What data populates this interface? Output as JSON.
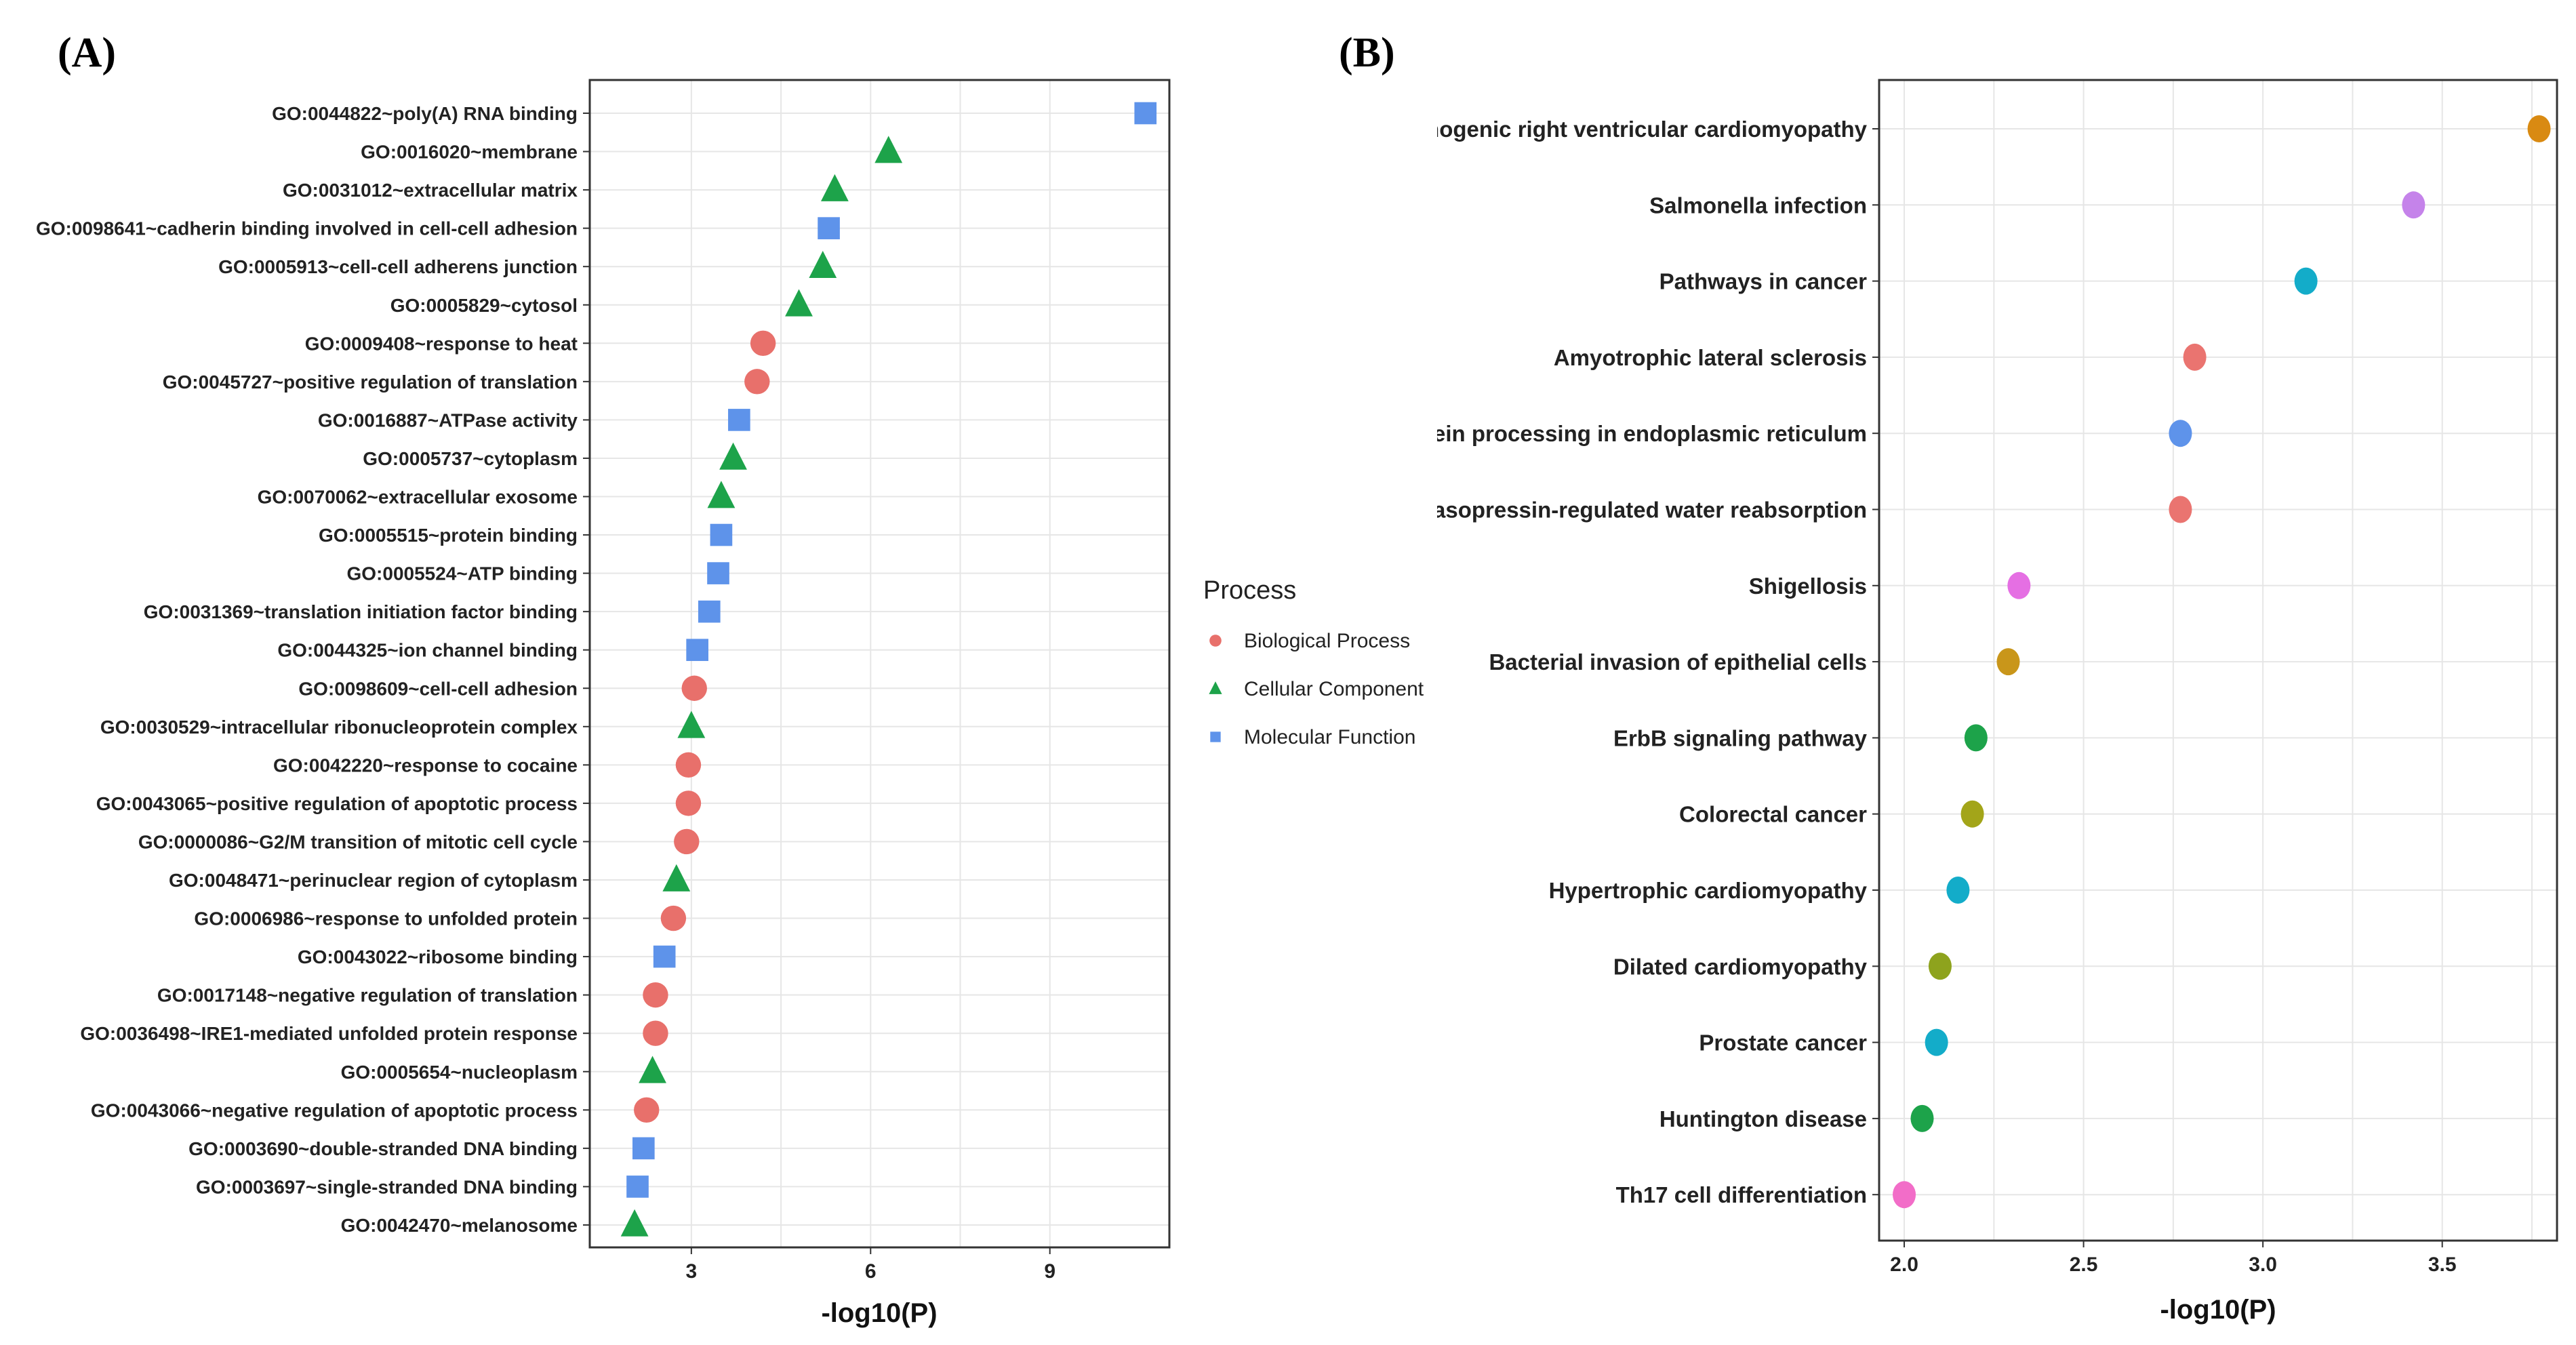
{
  "panels": {
    "a_label": "(A)",
    "b_label": "(B)"
  },
  "legend": {
    "title": "Process",
    "items": [
      {
        "name": "Biological Process",
        "color": "#E8706B",
        "shape": "circle"
      },
      {
        "name": "Cellular Component",
        "color": "#1DA34A",
        "shape": "triangle"
      },
      {
        "name": "Molecular Function",
        "color": "#5E93EA",
        "shape": "square"
      }
    ]
  },
  "chart_data": [
    {
      "type": "scatter",
      "panel": "A",
      "xlabel": "-log10(P)",
      "ylabel": "",
      "xlim": [
        1.3,
        11.0
      ],
      "xticks": [
        3,
        6,
        9
      ],
      "grid": true,
      "categories": [
        "GO:0044822~poly(A) RNA binding",
        "GO:0016020~membrane",
        "GO:0031012~extracellular matrix",
        "GO:0098641~cadherin binding involved in cell-cell adhesion",
        "GO:0005913~cell-cell adherens junction",
        "GO:0005829~cytosol",
        "GO:0009408~response to heat",
        "GO:0045727~positive regulation of translation",
        "GO:0016887~ATPase activity",
        "GO:0005737~cytoplasm",
        "GO:0070062~extracellular exosome",
        "GO:0005515~protein binding",
        "GO:0005524~ATP binding",
        "GO:0031369~translation initiation factor binding",
        "GO:0044325~ion channel binding",
        "GO:0098609~cell-cell adhesion",
        "GO:0030529~intracellular ribonucleoprotein complex",
        "GO:0042220~response to cocaine",
        "GO:0043065~positive regulation of apoptotic process",
        "GO:0000086~G2/M transition of mitotic cell cycle",
        "GO:0048471~perinuclear region of cytoplasm",
        "GO:0006986~response to unfolded protein",
        "GO:0043022~ribosome binding",
        "GO:0017148~negative regulation of translation",
        "GO:0036498~IRE1-mediated unfolded protein response",
        "GO:0005654~nucleoplasm",
        "GO:0043066~negative regulation of apoptotic process",
        "GO:0003690~double-stranded DNA binding",
        "GO:0003697~single-stranded DNA binding",
        "GO:0042470~melanosome"
      ],
      "values": [
        10.6,
        6.3,
        5.4,
        5.3,
        5.2,
        4.8,
        4.2,
        4.1,
        3.8,
        3.7,
        3.5,
        3.5,
        3.45,
        3.3,
        3.1,
        3.05,
        3.0,
        2.95,
        2.95,
        2.92,
        2.75,
        2.7,
        2.55,
        2.4,
        2.4,
        2.35,
        2.25,
        2.2,
        2.1,
        2.05
      ],
      "process": [
        "Molecular Function",
        "Cellular Component",
        "Cellular Component",
        "Molecular Function",
        "Cellular Component",
        "Cellular Component",
        "Biological Process",
        "Biological Process",
        "Molecular Function",
        "Cellular Component",
        "Cellular Component",
        "Molecular Function",
        "Molecular Function",
        "Molecular Function",
        "Molecular Function",
        "Biological Process",
        "Cellular Component",
        "Biological Process",
        "Biological Process",
        "Biological Process",
        "Cellular Component",
        "Biological Process",
        "Molecular Function",
        "Biological Process",
        "Biological Process",
        "Cellular Component",
        "Biological Process",
        "Molecular Function",
        "Molecular Function",
        "Cellular Component"
      ]
    },
    {
      "type": "scatter",
      "panel": "B",
      "xlabel": "-log10(P)",
      "ylabel": "",
      "xlim": [
        1.93,
        3.82
      ],
      "xticks": [
        "2.0",
        "2.5",
        "3.0",
        "3.5"
      ],
      "grid": true,
      "categories": [
        "Arrhythmogenic right ventricular cardiomyopathy",
        "Salmonella infection",
        "Pathways in cancer",
        "Amyotrophic lateral sclerosis",
        "Protein processing in endoplasmic reticulum",
        "Vasopressin-regulated water reabsorption",
        "Shigellosis",
        "Bacterial invasion of epithelial cells",
        "ErbB signaling pathway",
        "Colorectal cancer",
        "Hypertrophic cardiomyopathy",
        "Dilated cardiomyopathy",
        "Prostate cancer",
        "Huntington disease",
        "Th17 cell differentiation"
      ],
      "values": [
        3.77,
        3.42,
        3.12,
        2.81,
        2.77,
        2.77,
        2.32,
        2.29,
        2.2,
        2.19,
        2.15,
        2.1,
        2.09,
        2.05,
        2.0
      ],
      "colors": [
        "#D98A12",
        "#C583EA",
        "#13ACC9",
        "#EA7470",
        "#5E93EA",
        "#EA7470",
        "#E56FE3",
        "#C9961A",
        "#1DA34A",
        "#A3A519",
        "#13ACC9",
        "#8EA31D",
        "#13ACC9",
        "#1DA34A",
        "#F26DC8"
      ]
    }
  ]
}
